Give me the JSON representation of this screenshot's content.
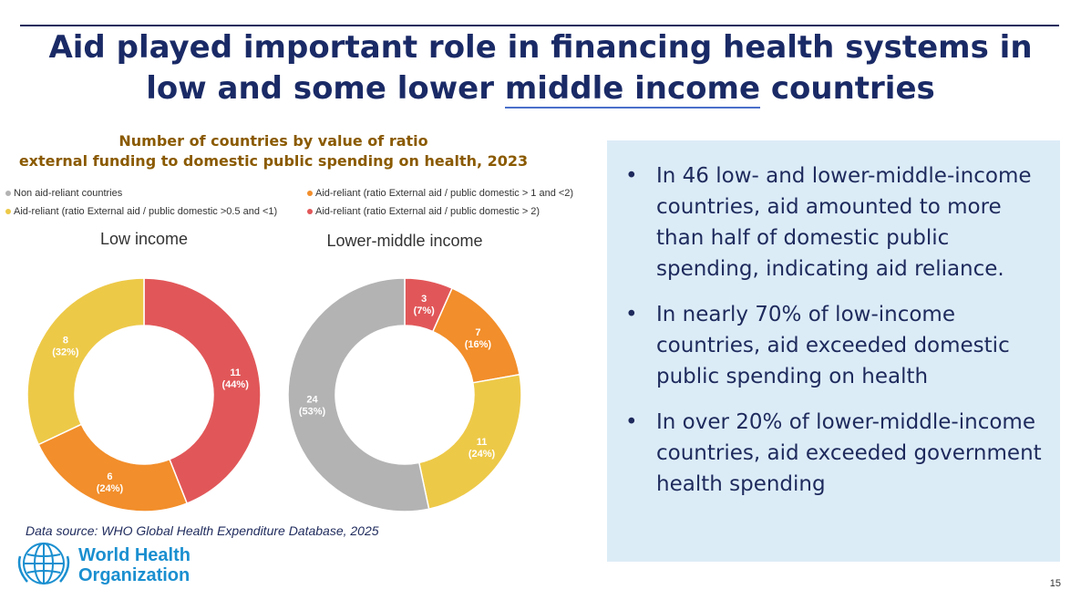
{
  "slide": {
    "title_part1": "Aid played important role in financing health systems in low and some lower ",
    "title_underlined": "middle income",
    "title_part2": " countries",
    "page_number": "15"
  },
  "chart_data": {
    "type": "donut",
    "title_line1": "Number of countries by value of ratio",
    "title_line2": "external funding to domestic public spending on health, 2023",
    "legend": [
      {
        "label": "Non aid-reliant countries",
        "color": "#b3b3b3"
      },
      {
        "label": "Aid-reliant (ratio External aid / public domestic > 1 and <2)",
        "color": "#f28e2b"
      },
      {
        "label": "Aid-reliant (ratio External aid / public domestic >0.5 and <1)",
        "color": "#edc948"
      },
      {
        "label": "Aid-reliant (ratio External aid / public domestic > 2)",
        "color": "#e15759"
      }
    ],
    "charts": [
      {
        "name": "Low income",
        "slices": [
          {
            "category": "Aid-reliant (ratio External aid / public domestic > 2)",
            "value": 11,
            "percent": "44%",
            "color": "#e15759"
          },
          {
            "category": "Aid-reliant (ratio External aid / public domestic > 1 and <2)",
            "value": 6,
            "percent": "24%",
            "color": "#f28e2b"
          },
          {
            "category": "Aid-reliant (ratio External aid / public domestic >0.5 and <1)",
            "value": 8,
            "percent": "32%",
            "color": "#edc948"
          }
        ]
      },
      {
        "name": "Lower-middle income",
        "slices": [
          {
            "category": "Aid-reliant (ratio External aid / public domestic > 2)",
            "value": 3,
            "percent": "7%",
            "color": "#e15759"
          },
          {
            "category": "Aid-reliant (ratio External aid / public domestic > 1 and <2)",
            "value": 7,
            "percent": "16%",
            "color": "#f28e2b"
          },
          {
            "category": "Aid-reliant (ratio External aid / public domestic >0.5 and <1)",
            "value": 11,
            "percent": "24%",
            "color": "#edc948"
          },
          {
            "category": "Non aid-reliant countries",
            "value": 24,
            "percent": "53%",
            "color": "#b3b3b3"
          }
        ]
      }
    ]
  },
  "bullets": [
    "In 46 low- and lower-middle-income countries, aid amounted to more than half of domestic public spending, indicating aid reliance.",
    "In nearly 70% of low-income countries, aid exceeded domestic public spending on health",
    "In over 20% of lower-middle-income countries, aid exceeded government health spending"
  ],
  "bullet_symbol": "•",
  "data_source": "Data source: WHO Global Health Expenditure Database, 2025",
  "logo": {
    "line1": "World Health",
    "line2": "Organization",
    "icon": "who-emblem-icon"
  }
}
